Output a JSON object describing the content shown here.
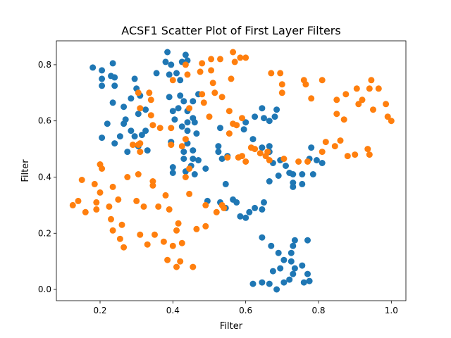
{
  "chart_data": {
    "type": "scatter",
    "title": "ACSF1 Scatter Plot of First Layer Filters",
    "xlabel": "Filter",
    "ylabel": "Filter",
    "xlim": [
      0.08,
      1.04
    ],
    "ylim": [
      -0.04,
      0.885
    ],
    "xticks": [
      0.2,
      0.4,
      0.6,
      0.8,
      1.0
    ],
    "xtick_labels": [
      "0.2",
      "0.4",
      "0.6",
      "0.8",
      "1.0"
    ],
    "yticks": [
      0.0,
      0.2,
      0.4,
      0.6,
      0.8
    ],
    "ytick_labels": [
      "0.0",
      "0.2",
      "0.4",
      "0.6",
      "0.8"
    ],
    "grid": false,
    "series": [
      {
        "color": "#1f77b4",
        "points": [
          [
            0.18,
            0.79
          ],
          [
            0.205,
            0.78
          ],
          [
            0.205,
            0.75
          ],
          [
            0.205,
            0.725
          ],
          [
            0.23,
            0.76
          ],
          [
            0.235,
            0.805
          ],
          [
            0.24,
            0.755
          ],
          [
            0.24,
            0.725
          ],
          [
            0.295,
            0.75
          ],
          [
            0.3,
            0.715
          ],
          [
            0.31,
            0.69
          ],
          [
            0.235,
            0.665
          ],
          [
            0.265,
            0.65
          ],
          [
            0.285,
            0.68
          ],
          [
            0.305,
            0.625
          ],
          [
            0.325,
            0.64
          ],
          [
            0.205,
            0.54
          ],
          [
            0.22,
            0.59
          ],
          [
            0.24,
            0.52
          ],
          [
            0.255,
            0.545
          ],
          [
            0.265,
            0.59
          ],
          [
            0.27,
            0.605
          ],
          [
            0.275,
            0.49
          ],
          [
            0.285,
            0.565
          ],
          [
            0.295,
            0.545
          ],
          [
            0.305,
            0.51
          ],
          [
            0.315,
            0.55
          ],
          [
            0.325,
            0.565
          ],
          [
            0.33,
            0.495
          ],
          [
            0.355,
            0.77
          ],
          [
            0.38,
            0.81
          ],
          [
            0.385,
            0.845
          ],
          [
            0.39,
            0.765
          ],
          [
            0.395,
            0.8
          ],
          [
            0.41,
            0.77
          ],
          [
            0.425,
            0.81
          ],
          [
            0.435,
            0.835
          ],
          [
            0.44,
            0.815
          ],
          [
            0.42,
            0.745
          ],
          [
            0.39,
            0.685
          ],
          [
            0.4,
            0.635
          ],
          [
            0.405,
            0.605
          ],
          [
            0.42,
            0.69
          ],
          [
            0.43,
            0.67
          ],
          [
            0.44,
            0.635
          ],
          [
            0.455,
            0.67
          ],
          [
            0.47,
            0.695
          ],
          [
            0.415,
            0.645
          ],
          [
            0.425,
            0.58
          ],
          [
            0.44,
            0.595
          ],
          [
            0.44,
            0.565
          ],
          [
            0.455,
            0.61
          ],
          [
            0.46,
            0.595
          ],
          [
            0.465,
            0.555
          ],
          [
            0.395,
            0.525
          ],
          [
            0.43,
            0.49
          ],
          [
            0.43,
            0.465
          ],
          [
            0.44,
            0.52
          ],
          [
            0.455,
            0.495
          ],
          [
            0.455,
            0.465
          ],
          [
            0.47,
            0.46
          ],
          [
            0.4,
            0.435
          ],
          [
            0.4,
            0.415
          ],
          [
            0.435,
            0.42
          ],
          [
            0.45,
            0.44
          ],
          [
            0.46,
            0.41
          ],
          [
            0.49,
            0.43
          ],
          [
            0.525,
            0.51
          ],
          [
            0.525,
            0.49
          ],
          [
            0.53,
            0.575
          ],
          [
            0.535,
            0.465
          ],
          [
            0.55,
            0.475
          ],
          [
            0.545,
            0.375
          ],
          [
            0.495,
            0.315
          ],
          [
            0.53,
            0.31
          ],
          [
            0.545,
            0.29
          ],
          [
            0.565,
            0.32
          ],
          [
            0.575,
            0.31
          ],
          [
            0.585,
            0.26
          ],
          [
            0.6,
            0.255
          ],
          [
            0.61,
            0.275
          ],
          [
            0.625,
            0.29
          ],
          [
            0.6,
            0.595
          ],
          [
            0.625,
            0.615
          ],
          [
            0.645,
            0.645
          ],
          [
            0.65,
            0.61
          ],
          [
            0.665,
            0.6
          ],
          [
            0.68,
            0.615
          ],
          [
            0.685,
            0.64
          ],
          [
            0.645,
            0.505
          ],
          [
            0.665,
            0.51
          ],
          [
            0.665,
            0.49
          ],
          [
            0.695,
            0.46
          ],
          [
            0.71,
            0.44
          ],
          [
            0.675,
            0.45
          ],
          [
            0.665,
            0.385
          ],
          [
            0.69,
            0.405
          ],
          [
            0.72,
            0.415
          ],
          [
            0.73,
            0.41
          ],
          [
            0.73,
            0.38
          ],
          [
            0.73,
            0.365
          ],
          [
            0.755,
            0.41
          ],
          [
            0.755,
            0.375
          ],
          [
            0.775,
            0.465
          ],
          [
            0.78,
            0.505
          ],
          [
            0.785,
            0.41
          ],
          [
            0.795,
            0.46
          ],
          [
            0.81,
            0.45
          ],
          [
            0.65,
            0.31
          ],
          [
            0.645,
            0.285
          ],
          [
            0.645,
            0.185
          ],
          [
            0.67,
            0.155
          ],
          [
            0.69,
            0.13
          ],
          [
            0.725,
            0.13
          ],
          [
            0.73,
            0.155
          ],
          [
            0.735,
            0.175
          ],
          [
            0.705,
            0.105
          ],
          [
            0.695,
            0.075
          ],
          [
            0.675,
            0.065
          ],
          [
            0.725,
            0.1
          ],
          [
            0.735,
            0.075
          ],
          [
            0.755,
            0.085
          ],
          [
            0.77,
            0.175
          ],
          [
            0.77,
            0.055
          ],
          [
            0.775,
            0.03
          ],
          [
            0.76,
            0.025
          ],
          [
            0.73,
            0.055
          ],
          [
            0.72,
            0.035
          ],
          [
            0.705,
            0.025
          ],
          [
            0.685,
            0.0
          ],
          [
            0.665,
            0.02
          ],
          [
            0.645,
            0.025
          ],
          [
            0.62,
            0.02
          ],
          [
            0.595,
            0.57
          ],
          [
            0.62,
            0.535
          ]
        ]
      },
      {
        "color": "#ff7f0e",
        "points": [
          [
            0.125,
            0.3
          ],
          [
            0.14,
            0.315
          ],
          [
            0.15,
            0.39
          ],
          [
            0.16,
            0.275
          ],
          [
            0.185,
            0.375
          ],
          [
            0.19,
            0.31
          ],
          [
            0.19,
            0.285
          ],
          [
            0.2,
            0.445
          ],
          [
            0.205,
            0.43
          ],
          [
            0.2,
            0.345
          ],
          [
            0.225,
            0.295
          ],
          [
            0.23,
            0.25
          ],
          [
            0.235,
            0.21
          ],
          [
            0.235,
            0.365
          ],
          [
            0.25,
            0.32
          ],
          [
            0.255,
            0.18
          ],
          [
            0.26,
            0.23
          ],
          [
            0.265,
            0.15
          ],
          [
            0.275,
            0.4
          ],
          [
            0.29,
            0.515
          ],
          [
            0.3,
            0.315
          ],
          [
            0.305,
            0.41
          ],
          [
            0.31,
            0.195
          ],
          [
            0.32,
            0.295
          ],
          [
            0.33,
            0.16
          ],
          [
            0.345,
            0.385
          ],
          [
            0.345,
            0.37
          ],
          [
            0.35,
            0.195
          ],
          [
            0.36,
            0.295
          ],
          [
            0.375,
            0.17
          ],
          [
            0.38,
            0.335
          ],
          [
            0.385,
            0.105
          ],
          [
            0.39,
            0.285
          ],
          [
            0.4,
            0.155
          ],
          [
            0.41,
            0.21
          ],
          [
            0.415,
            0.235
          ],
          [
            0.42,
            0.1
          ],
          [
            0.425,
            0.165
          ],
          [
            0.41,
            0.08
          ],
          [
            0.455,
            0.08
          ],
          [
            0.445,
            0.34
          ],
          [
            0.435,
            0.4
          ],
          [
            0.445,
            0.43
          ],
          [
            0.465,
            0.215
          ],
          [
            0.49,
            0.3
          ],
          [
            0.49,
            0.225
          ],
          [
            0.5,
            0.615
          ],
          [
            0.505,
            0.78
          ],
          [
            0.505,
            0.82
          ],
          [
            0.51,
            0.735
          ],
          [
            0.475,
            0.775
          ],
          [
            0.48,
            0.805
          ],
          [
            0.435,
            0.8
          ],
          [
            0.44,
            0.765
          ],
          [
            0.4,
            0.745
          ],
          [
            0.485,
            0.665
          ],
          [
            0.48,
            0.695
          ],
          [
            0.445,
            0.645
          ],
          [
            0.435,
            0.535
          ],
          [
            0.425,
            0.51
          ],
          [
            0.395,
            0.575
          ],
          [
            0.395,
            0.515
          ],
          [
            0.365,
            0.575
          ],
          [
            0.345,
            0.585
          ],
          [
            0.34,
            0.675
          ],
          [
            0.335,
            0.7
          ],
          [
            0.31,
            0.645
          ],
          [
            0.305,
            0.515
          ],
          [
            0.31,
            0.52
          ],
          [
            0.305,
            0.7
          ],
          [
            0.34,
            0.62
          ],
          [
            0.53,
            0.82
          ],
          [
            0.56,
            0.75
          ],
          [
            0.565,
            0.845
          ],
          [
            0.57,
            0.81
          ],
          [
            0.585,
            0.825
          ],
          [
            0.6,
            0.825
          ],
          [
            0.515,
            0.7
          ],
          [
            0.535,
            0.685
          ],
          [
            0.555,
            0.635
          ],
          [
            0.565,
            0.59
          ],
          [
            0.575,
            0.585
          ],
          [
            0.59,
            0.61
          ],
          [
            0.555,
            0.555
          ],
          [
            0.52,
            0.275
          ],
          [
            0.535,
            0.3
          ],
          [
            0.54,
            0.29
          ],
          [
            0.55,
            0.47
          ],
          [
            0.59,
            0.475
          ],
          [
            0.6,
            0.455
          ],
          [
            0.615,
            0.505
          ],
          [
            0.625,
            0.5
          ],
          [
            0.64,
            0.485
          ],
          [
            0.655,
            0.475
          ],
          [
            0.66,
            0.49
          ],
          [
            0.665,
            0.46
          ],
          [
            0.67,
            0.77
          ],
          [
            0.695,
            0.77
          ],
          [
            0.7,
            0.73
          ],
          [
            0.7,
            0.7
          ],
          [
            0.705,
            0.465
          ],
          [
            0.745,
            0.455
          ],
          [
            0.76,
            0.745
          ],
          [
            0.765,
            0.73
          ],
          [
            0.77,
            0.455
          ],
          [
            0.78,
            0.68
          ],
          [
            0.81,
            0.745
          ],
          [
            0.81,
            0.49
          ],
          [
            0.82,
            0.525
          ],
          [
            0.845,
            0.51
          ],
          [
            0.85,
            0.675
          ],
          [
            0.85,
            0.625
          ],
          [
            0.86,
            0.53
          ],
          [
            0.87,
            0.605
          ],
          [
            0.875,
            0.695
          ],
          [
            0.88,
            0.475
          ],
          [
            0.9,
            0.48
          ],
          [
            0.905,
            0.715
          ],
          [
            0.91,
            0.66
          ],
          [
            0.92,
            0.675
          ],
          [
            0.935,
            0.5
          ],
          [
            0.94,
            0.715
          ],
          [
            0.94,
            0.48
          ],
          [
            0.945,
            0.745
          ],
          [
            0.95,
            0.64
          ],
          [
            0.965,
            0.715
          ],
          [
            0.985,
            0.66
          ],
          [
            0.99,
            0.615
          ],
          [
            1.0,
            0.6
          ],
          [
            0.58,
            0.47
          ],
          [
            0.31,
            0.49
          ]
        ]
      }
    ]
  }
}
